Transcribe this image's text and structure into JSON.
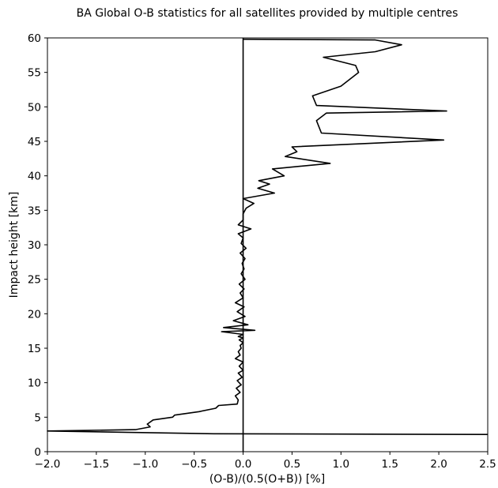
{
  "chart_data": {
    "type": "line",
    "title": "BA Global O-B statistics for all satellites provided by multiple centres",
    "xlabel": "(O-B)/(0.5(O+B)) [%]",
    "ylabel": "Impact height [km]",
    "xlim": [
      -2.0,
      2.5
    ],
    "ylim": [
      0,
      60
    ],
    "xticks": [
      -2.0,
      -1.5,
      -1.0,
      -0.5,
      0.0,
      0.5,
      1.0,
      1.5,
      2.0,
      2.5
    ],
    "xtick_labels": [
      "−2.0",
      "−1.5",
      "−1.0",
      "−0.5",
      "0.0",
      "0.5",
      "1.0",
      "1.5",
      "2.0",
      "2.5"
    ],
    "yticks": [
      0,
      5,
      10,
      15,
      20,
      25,
      30,
      35,
      40,
      45,
      50,
      55,
      60
    ],
    "ytick_labels": [
      "0",
      "5",
      "10",
      "15",
      "20",
      "25",
      "30",
      "35",
      "40",
      "45",
      "50",
      "55",
      "60"
    ],
    "grid": false,
    "legend": "none",
    "reference_line": {
      "x": 0.0,
      "color": "#000000"
    },
    "series": [
      {
        "color": "#000000",
        "x": [
          2.5,
          -0.3,
          -2.0,
          -1.1,
          -0.95,
          -0.98,
          -0.92,
          -0.72,
          -0.7,
          -0.45,
          -0.28,
          -0.25,
          -0.06,
          -0.05,
          -0.08,
          -0.03,
          -0.07,
          -0.02,
          -0.06,
          -0.01,
          -0.05,
          0.0,
          -0.04,
          0.0,
          -0.08,
          -0.03,
          -0.05,
          -0.02,
          -0.03,
          0.0,
          -0.04,
          0.0,
          -0.05,
          0.0,
          -0.22,
          0.12,
          -0.2,
          0.05,
          -0.1,
          0.02,
          -0.06,
          0.01,
          -0.08,
          0.0,
          -0.03,
          0.01,
          -0.04,
          0.02,
          -0.02,
          0.01,
          -0.01,
          0.02,
          -0.03,
          0.03,
          -0.02,
          0.0,
          -0.05,
          0.08,
          -0.05,
          0.0,
          0.0,
          0.03,
          0.11,
          0.0,
          0.32,
          0.15,
          0.27,
          0.16,
          0.42,
          0.3,
          0.89,
          0.43,
          0.55,
          0.5,
          2.05,
          0.8,
          0.75,
          0.85,
          2.08,
          0.75,
          0.71,
          1.0,
          1.18,
          1.15,
          0.82,
          1.35,
          1.62,
          1.35,
          0.0
        ],
        "y": [
          2.5,
          2.6,
          3.0,
          3.2,
          3.6,
          4.0,
          4.6,
          5.0,
          5.3,
          5.8,
          6.3,
          6.7,
          6.9,
          7.5,
          8.1,
          8.6,
          9.2,
          9.7,
          10.3,
          10.8,
          11.4,
          11.8,
          12.4,
          13.0,
          13.5,
          14.0,
          14.5,
          15.0,
          15.4,
          15.8,
          16.2,
          16.5,
          16.7,
          17.0,
          17.4,
          17.6,
          18.0,
          18.4,
          19.0,
          19.6,
          20.3,
          21.0,
          21.6,
          22.3,
          23.0,
          23.6,
          24.3,
          25.0,
          25.8,
          26.5,
          27.3,
          28.0,
          28.8,
          29.5,
          30.2,
          31.0,
          31.6,
          32.3,
          32.9,
          33.6,
          34.5,
          35.3,
          36.0,
          36.7,
          37.5,
          38.2,
          38.8,
          39.3,
          40.0,
          41.0,
          41.8,
          42.8,
          43.5,
          44.2,
          45.2,
          46.2,
          48.0,
          49.1,
          49.4,
          50.2,
          51.6,
          53.0,
          55.0,
          56.0,
          57.2,
          58.0,
          59.0,
          59.7,
          59.8
        ]
      }
    ]
  }
}
